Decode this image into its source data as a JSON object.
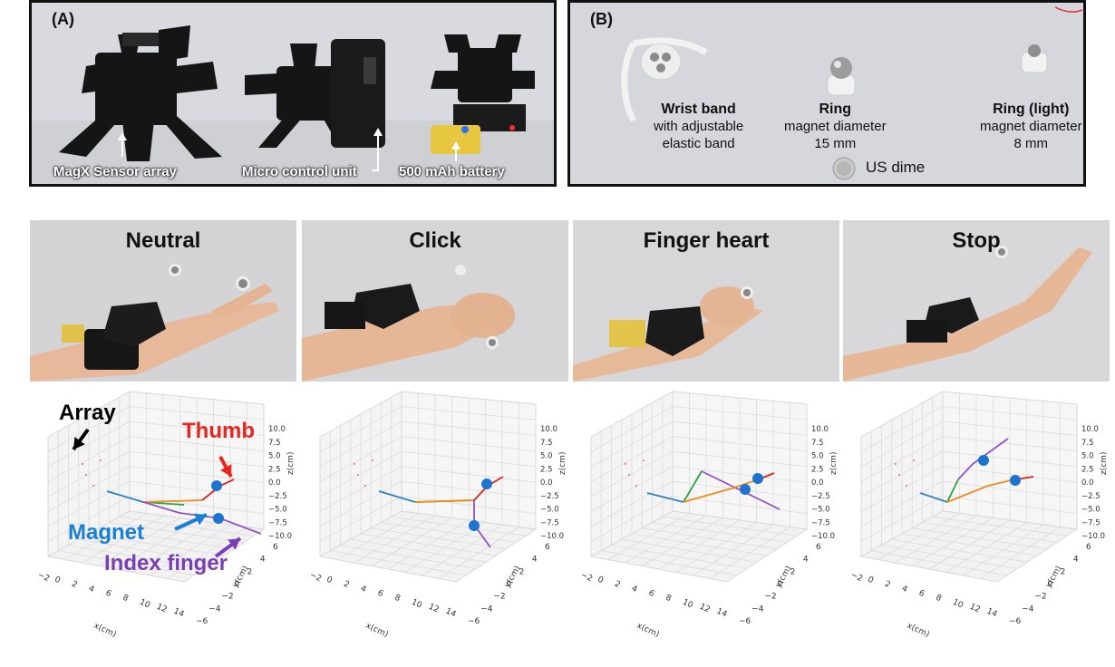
{
  "panel_a": {
    "label": "(A)",
    "captions": [
      "MagX Sensor array",
      "Micro control unit",
      "500 mAh battery"
    ]
  },
  "panel_b": {
    "label": "(B)",
    "items": [
      {
        "title": "Wrist band",
        "line1": "with adjustable",
        "line2": "elastic band"
      },
      {
        "title": "Ring",
        "line1": "magnet diameter",
        "line2": "15 mm"
      },
      {
        "title": "Ring (light)",
        "line1": "magnet diameter",
        "line2": "8 mm"
      }
    ],
    "dime_label": "US dime"
  },
  "gestures": [
    "Neutral",
    "Click",
    "Finger heart",
    "Stop"
  ],
  "axes": {
    "x_label": "x(cm)",
    "y_label": "y(cm)",
    "z_label": "z(cm)",
    "x_ticks": [
      "−2",
      "0",
      "2",
      "4",
      "6",
      "8",
      "10",
      "12",
      "14"
    ],
    "y_ticks": [
      "6",
      "4",
      "2",
      "0",
      "−2",
      "−4",
      "−6"
    ],
    "z_ticks": [
      "10.0",
      "7.5",
      "5.0",
      "2.5",
      "0.0",
      "−2.5",
      "−5.0",
      "−7.5",
      "−10.0"
    ]
  },
  "annotations": {
    "array": "Array",
    "thumb": "Thumb",
    "magnet": "Magnet",
    "index_finger": "Index finger"
  },
  "colors": {
    "thumb": "#e8261f",
    "magnet": "#1a7fd6",
    "index": "#7b3fb5",
    "array": "#000000",
    "line_blue": "#2f80c0",
    "line_orange": "#f08a1c",
    "line_green": "#2aa43a",
    "line_red": "#d9231e",
    "line_purple": "#8e52c8"
  },
  "chart_data": [
    {
      "type": "line",
      "title": "Neutral"
    },
    {
      "type": "line",
      "title": "Click"
    },
    {
      "type": "line",
      "title": "Finger heart"
    },
    {
      "type": "line",
      "title": "Stop"
    }
  ]
}
